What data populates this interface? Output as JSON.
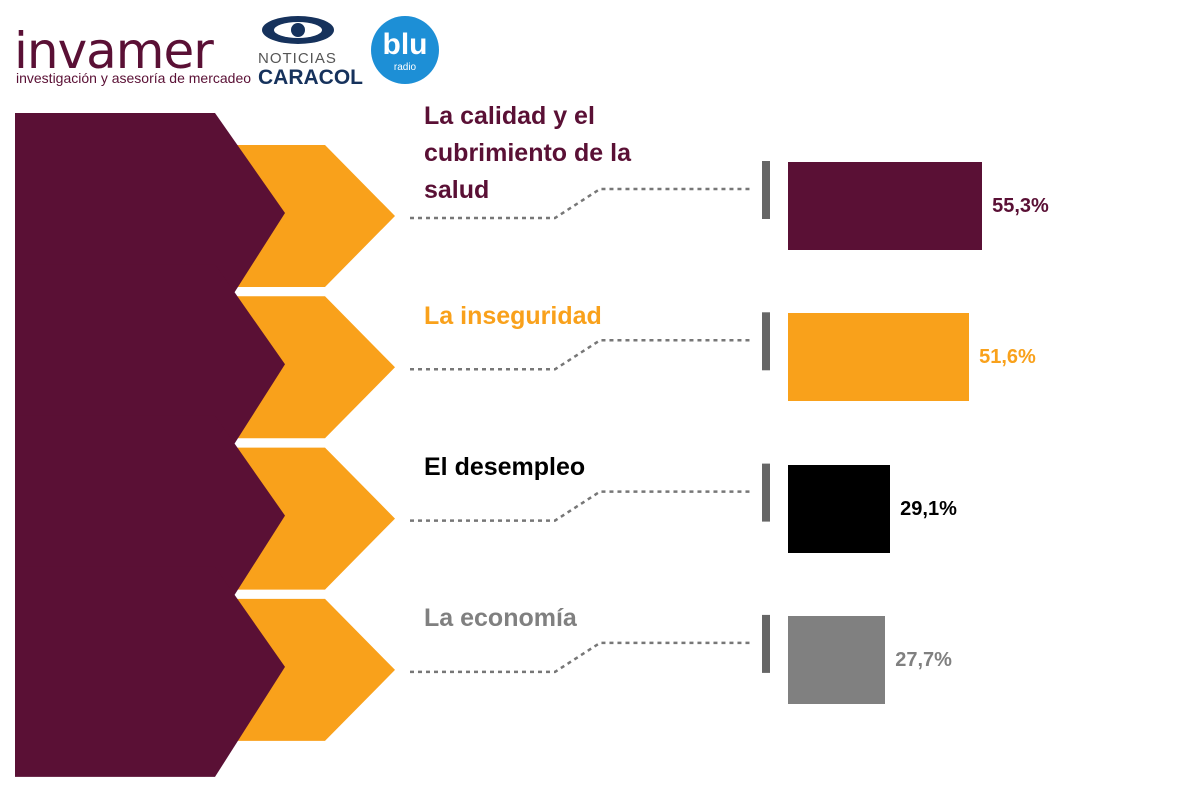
{
  "logos": {
    "invamer": {
      "name": "invamer",
      "tagline": "investigación y asesoría de mercadeo"
    },
    "caracol": {
      "top": "NOTICIAS",
      "bottom": "CARACOL"
    },
    "blu": {
      "name": "blu",
      "sub": "radio"
    }
  },
  "chart_data": {
    "type": "bar",
    "orientation": "horizontal",
    "categories": [
      "La calidad y el cubrimiento de la salud",
      "La inseguridad",
      "El desempleo",
      "La economía"
    ],
    "values": [
      55.3,
      51.6,
      29.1,
      27.7
    ],
    "value_labels": [
      "55,3%",
      "51,6%",
      "29,1%",
      "27,7%"
    ],
    "colors": [
      "#5a1035",
      "#f9a11b",
      "#000000",
      "#808080"
    ]
  }
}
